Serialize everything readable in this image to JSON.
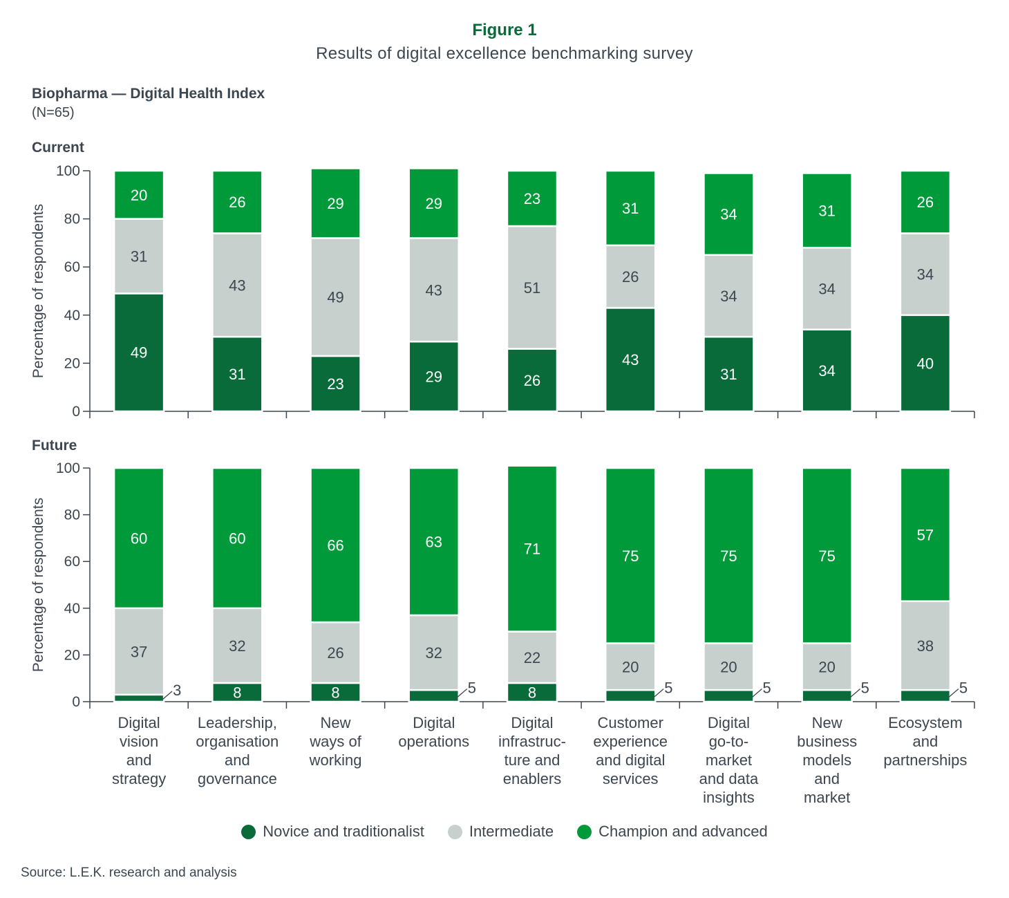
{
  "figure": {
    "label": "Figure 1",
    "title": "Results of digital excellence benchmarking survey",
    "chart_title": "Biopharma — Digital Health Index",
    "chart_subtitle": "(N=65)",
    "source": "Source: L.E.K. research and analysis"
  },
  "colors": {
    "novice": "#0a6b3a",
    "intermediate": "#c8d0ce",
    "champion": "#009a3a"
  },
  "chart_data": [
    {
      "type": "bar",
      "stacked": true,
      "panel": "Current",
      "ylabel": "Percentage of respondents",
      "ylim": [
        0,
        100
      ],
      "yticks": [
        0,
        20,
        40,
        60,
        80,
        100
      ],
      "categories": [
        "Digital vision and strategy",
        "Leadership, organisation and governance",
        "New ways of working",
        "Digital operations",
        "Digital infrastructure and enablers",
        "Customer experience and digital services",
        "Digital go-to-market and data insights",
        "New business models and market",
        "Ecosystem and partnerships"
      ],
      "series": [
        {
          "name": "Novice and traditionalist",
          "values": [
            49,
            31,
            23,
            29,
            26,
            43,
            31,
            34,
            40
          ]
        },
        {
          "name": "Intermediate",
          "values": [
            31,
            43,
            49,
            43,
            51,
            26,
            34,
            34,
            34
          ]
        },
        {
          "name": "Champion and advanced",
          "values": [
            20,
            26,
            29,
            29,
            23,
            31,
            34,
            31,
            26
          ]
        }
      ]
    },
    {
      "type": "bar",
      "stacked": true,
      "panel": "Future",
      "ylabel": "Percentage of respondents",
      "ylim": [
        0,
        100
      ],
      "yticks": [
        0,
        20,
        40,
        60,
        80,
        100
      ],
      "categories": [
        "Digital vision and strategy",
        "Leadership, organisation and governance",
        "New ways of working",
        "Digital operations",
        "Digital infrastructure and enablers",
        "Customer experience and digital services",
        "Digital go-to-market and data insights",
        "New business models and market",
        "Ecosystem and partnerships"
      ],
      "series": [
        {
          "name": "Novice and traditionalist",
          "values": [
            3,
            8,
            8,
            5,
            8,
            5,
            5,
            5,
            5
          ]
        },
        {
          "name": "Intermediate",
          "values": [
            37,
            32,
            26,
            32,
            22,
            20,
            20,
            20,
            38
          ]
        },
        {
          "name": "Champion and advanced",
          "values": [
            60,
            60,
            66,
            63,
            71,
            75,
            75,
            75,
            57
          ]
        }
      ]
    }
  ],
  "category_lines": [
    [
      "Digital",
      "vision",
      "and",
      "strategy"
    ],
    [
      "Leadership,",
      "organisation",
      "and",
      "governance"
    ],
    [
      "New",
      "ways of",
      "working"
    ],
    [
      "Digital",
      "operations"
    ],
    [
      "Digital",
      "infrastruc-",
      "ture and",
      "enablers"
    ],
    [
      "Customer",
      "experience",
      "and digital",
      "services"
    ],
    [
      "Digital",
      "go-to-",
      "market",
      "and data",
      "insights"
    ],
    [
      "New",
      "business",
      "models",
      "and",
      "market"
    ],
    [
      "Ecosystem",
      "and",
      "partnerships"
    ]
  ],
  "legend": [
    {
      "label": "Novice and traditionalist",
      "color": "#0a6b3a"
    },
    {
      "label": "Intermediate",
      "color": "#c8d0ce"
    },
    {
      "label": "Champion and advanced",
      "color": "#009a3a"
    }
  ]
}
